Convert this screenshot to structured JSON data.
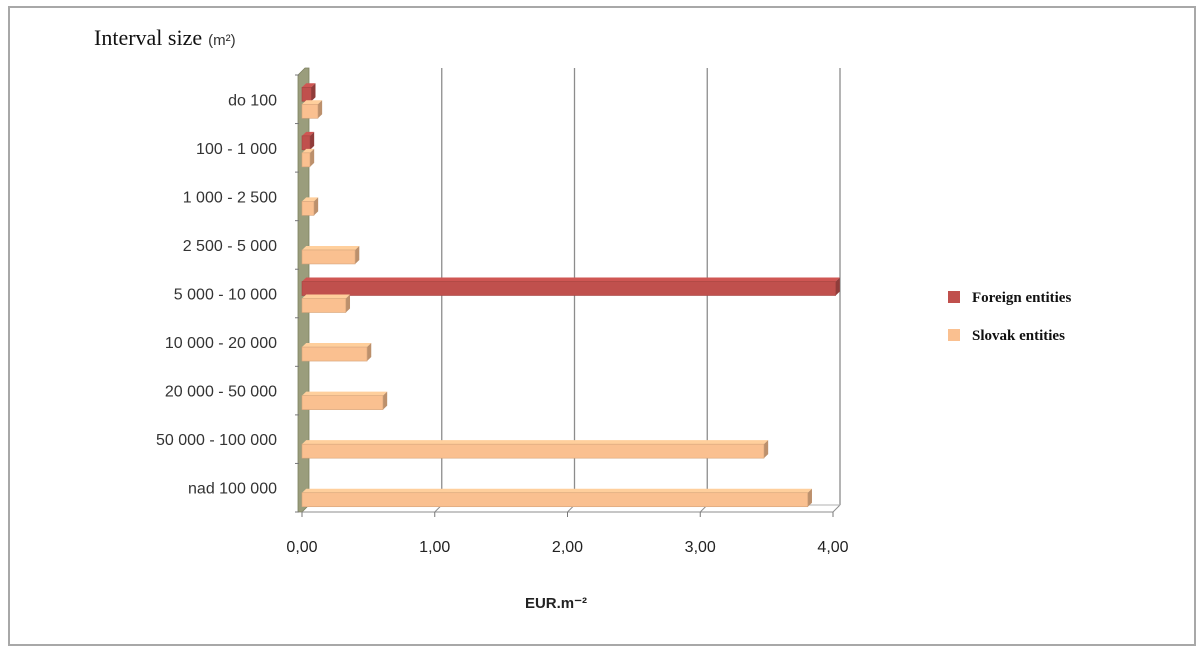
{
  "chart_data": {
    "type": "bar",
    "orientation": "horizontal",
    "categories": [
      "do 100",
      "100 - 1 000",
      "1 000 - 2 500",
      "2 500 - 5 000",
      "5 000 - 10 000",
      "10 000 - 20 000",
      "20 000 - 50 000",
      "50 000 - 100 000",
      "nad 100 000"
    ],
    "series": [
      {
        "name": "Foreign entities",
        "color": "#c0504d",
        "values": [
          0.07,
          0.06,
          0,
          0,
          4.02,
          0,
          0,
          0,
          0
        ]
      },
      {
        "name": "Slovak entities",
        "color": "#fac090",
        "values": [
          0.12,
          0.06,
          0.09,
          0.4,
          0.33,
          0.49,
          0.61,
          3.48,
          3.81
        ]
      }
    ],
    "ytitle_main": "Interval size",
    "ytitle_unit": "(m²)",
    "xtitle": "EUR.m⁻²",
    "xlim": [
      0,
      4
    ],
    "xticks": [
      "0,00",
      "1,00",
      "2,00",
      "3,00",
      "4,00"
    ],
    "grid": true,
    "legend_position": "right"
  }
}
